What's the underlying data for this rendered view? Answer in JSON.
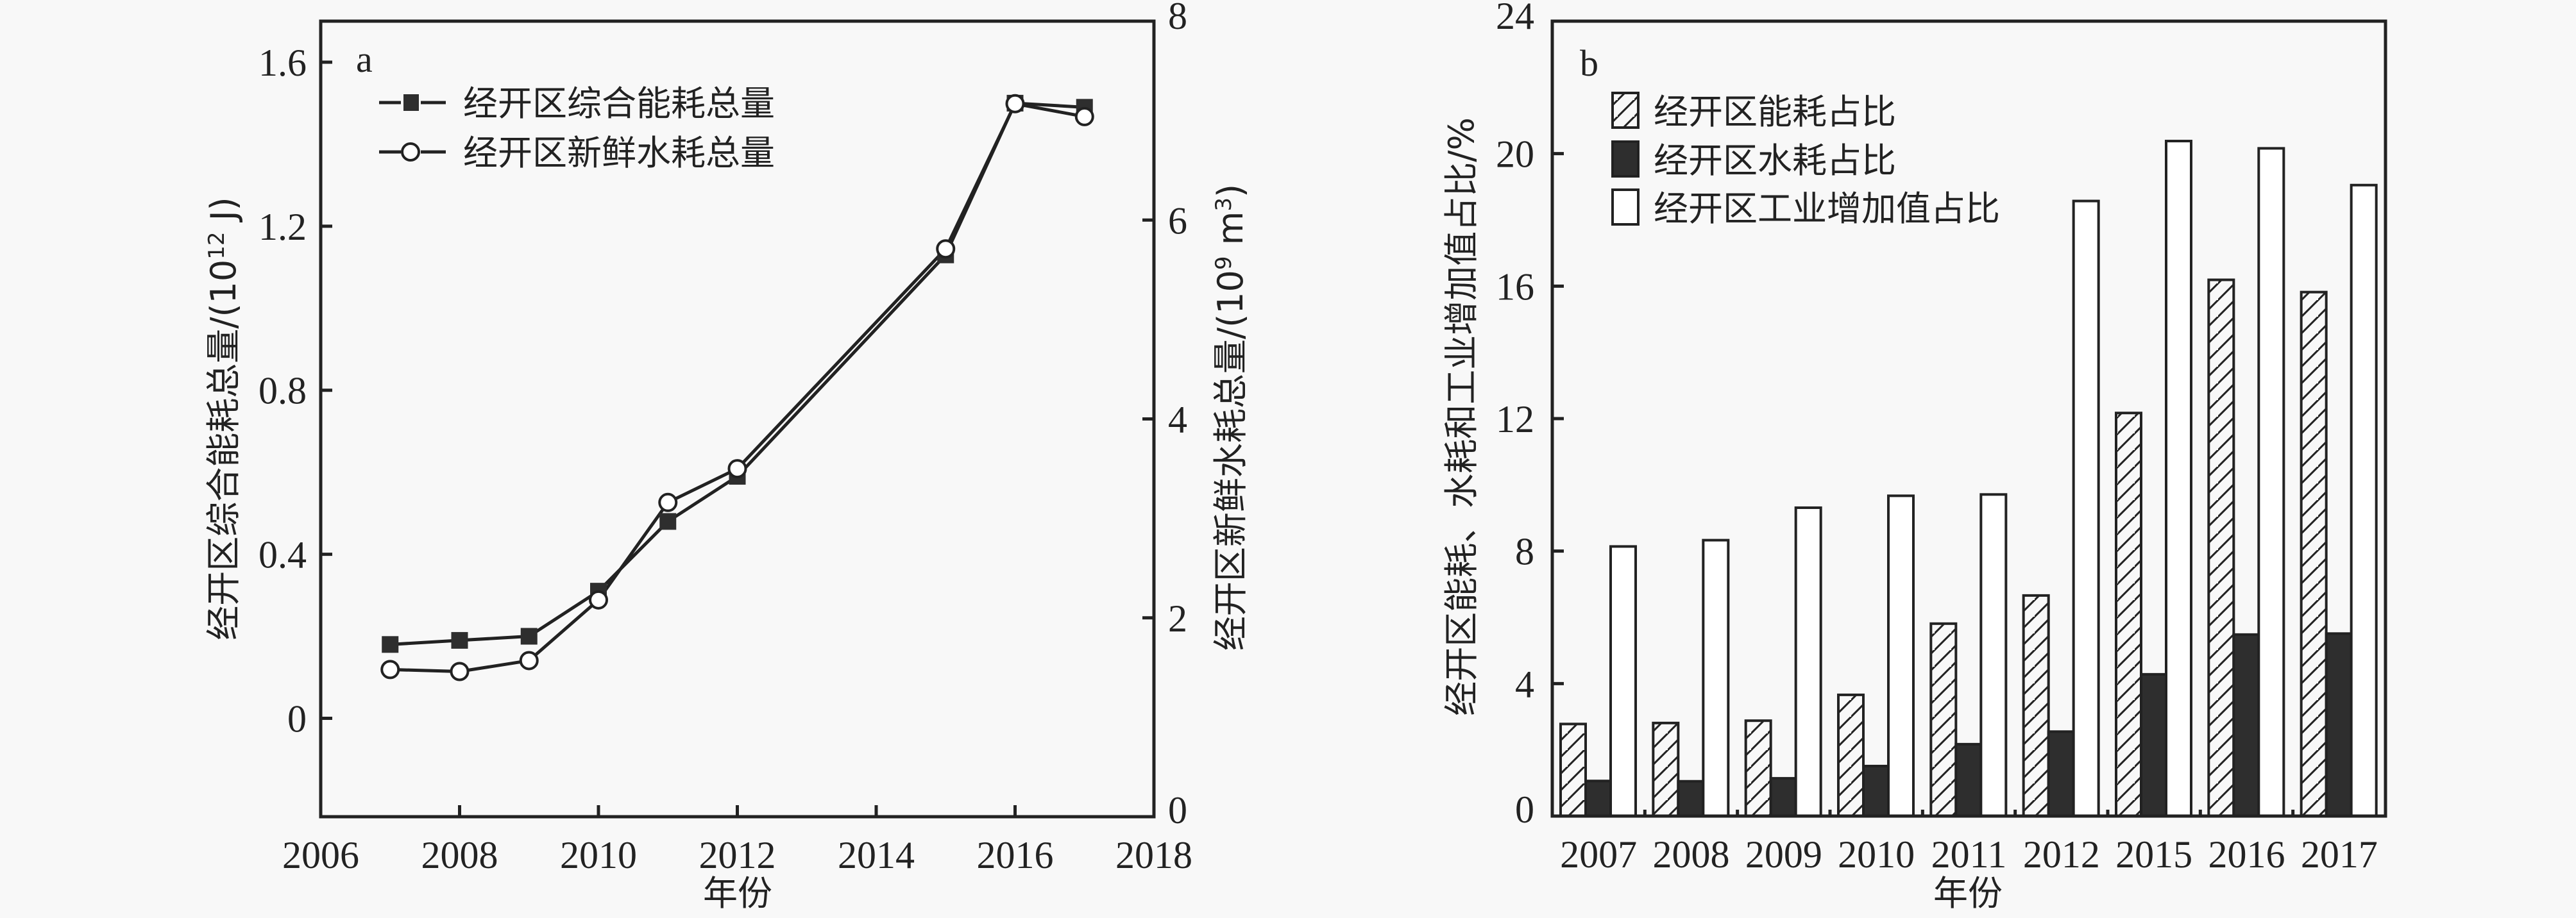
{
  "chart_data": [
    {
      "panel": "a",
      "type": "line",
      "xlabel": "年份",
      "ylabel_left": "经开区综合能耗总量/(10^12 J)",
      "ylabel_left_parts": {
        "prefix": "经开区综合能耗总量/(10",
        "sup": "12",
        "suffix": " J)"
      },
      "ylabel_right": "经开区新鲜水耗总量/(10^9 m^3)",
      "ylabel_right_parts": {
        "prefix": "经开区新鲜水耗总量/(10",
        "sup": "9",
        "mid": " m",
        "sup2": "3",
        "suffix": ")"
      },
      "x_ticks": [
        2006,
        2008,
        2010,
        2012,
        2014,
        2016,
        2018
      ],
      "y_left_ticks": [
        "0",
        "0.4",
        "0.8",
        "1.2",
        "1.6"
      ],
      "y_right_ticks": [
        "0",
        "2",
        "4",
        "6",
        "8"
      ],
      "xlim": [
        2006,
        2018
      ],
      "ylim_left": [
        -0.24,
        1.7
      ],
      "ylim_right": [
        0,
        8
      ],
      "legend": [
        "经开区综合能耗总量",
        "经开区新鲜水耗总量"
      ],
      "x": [
        2007,
        2008,
        2009,
        2010,
        2011,
        2012,
        2015,
        2016,
        2017
      ],
      "series": [
        {
          "name": "经开区综合能耗总量",
          "axis": "left",
          "marker": "filled-square",
          "values": [
            0.18,
            0.19,
            0.2,
            0.31,
            0.48,
            0.59,
            1.13,
            1.5,
            1.49
          ]
        },
        {
          "name": "经开区新鲜水耗总量",
          "axis": "right",
          "marker": "open-circle",
          "values": [
            1.48,
            1.46,
            1.57,
            2.18,
            3.16,
            3.5,
            5.71,
            7.17,
            7.04
          ]
        }
      ],
      "grid": false,
      "legend_position": "upper-left"
    },
    {
      "panel": "b",
      "type": "bar",
      "xlabel": "年份",
      "ylabel": "经开区能耗、水耗和工业增加值占比/%",
      "categories": [
        "2007",
        "2008",
        "2009",
        "2010",
        "2011",
        "2012",
        "2015",
        "2016",
        "2017"
      ],
      "y_ticks": [
        "0",
        "4",
        "8",
        "12",
        "16",
        "20",
        "24"
      ],
      "ylim": [
        0,
        24
      ],
      "legend": [
        "经开区能耗占比",
        "经开区水耗占比",
        "经开区工业增加值占比"
      ],
      "series": [
        {
          "name": "经开区能耗占比",
          "fill": "hatched",
          "values": [
            2.78,
            2.81,
            2.88,
            3.66,
            5.81,
            6.66,
            12.17,
            16.19,
            15.82
          ]
        },
        {
          "name": "经开区水耗占比",
          "fill": "solid-black",
          "values": [
            1.06,
            1.05,
            1.14,
            1.51,
            2.17,
            2.55,
            4.28,
            5.48,
            5.51
          ]
        },
        {
          "name": "经开区工业增加值占比",
          "fill": "white",
          "values": [
            8.14,
            8.33,
            9.31,
            9.67,
            9.71,
            18.57,
            20.38,
            20.16,
            19.05
          ]
        }
      ],
      "grid": false,
      "legend_position": "upper-left"
    }
  ],
  "panel_a": {
    "letter": "a",
    "xlabel": "年份"
  },
  "panel_b": {
    "letter": "b",
    "xlabel": "年份"
  },
  "colors": {
    "ink": "#222222",
    "background": "#f8f8f8",
    "bar_solid": "#2e2e2e"
  }
}
